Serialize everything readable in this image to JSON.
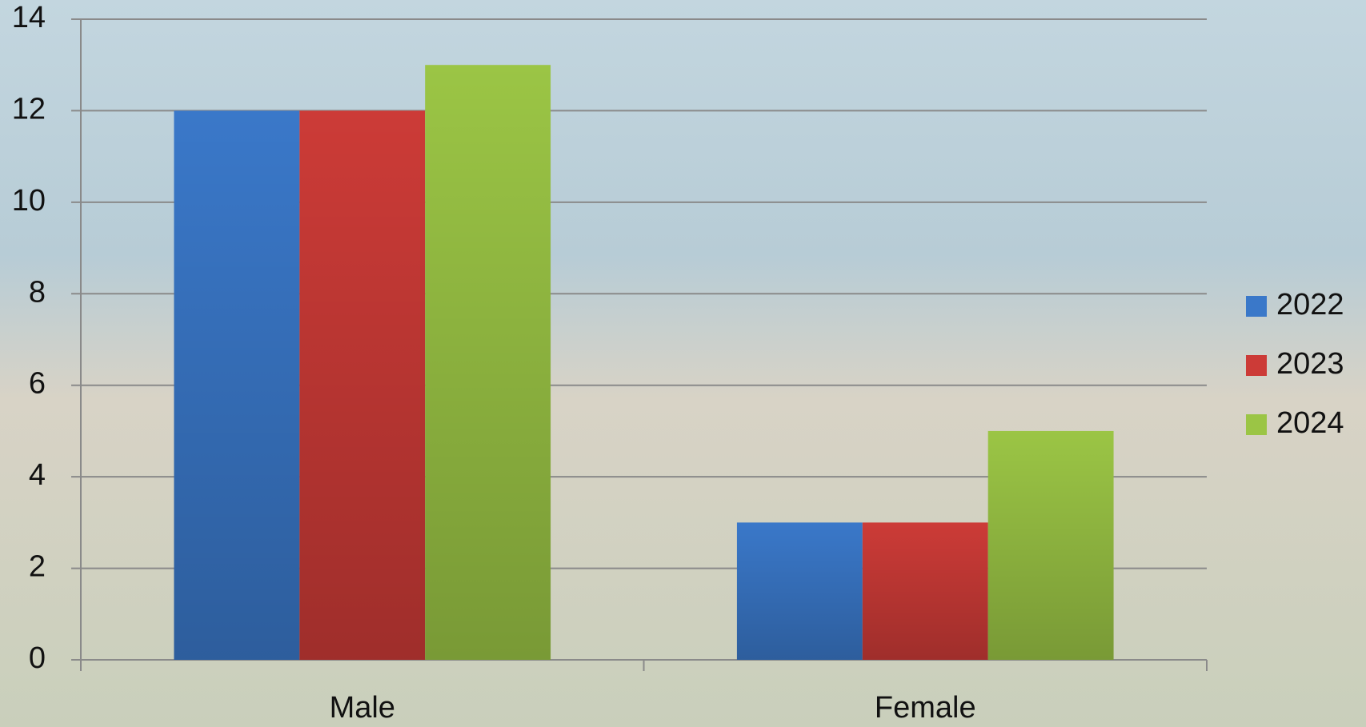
{
  "chart_data": {
    "type": "bar",
    "categories": [
      "Male",
      "Female"
    ],
    "series": [
      {
        "name": "2022",
        "color": "#3a78c9",
        "values": [
          12,
          3
        ]
      },
      {
        "name": "2023",
        "color": "#cc3b37",
        "values": [
          12,
          3
        ]
      },
      {
        "name": "2024",
        "color": "#9bc545",
        "values": [
          13,
          5
        ]
      }
    ],
    "ylim": [
      0,
      14
    ],
    "yticks": [
      0,
      2,
      4,
      6,
      8,
      10,
      12,
      14
    ],
    "grid": true,
    "legend": "right"
  }
}
